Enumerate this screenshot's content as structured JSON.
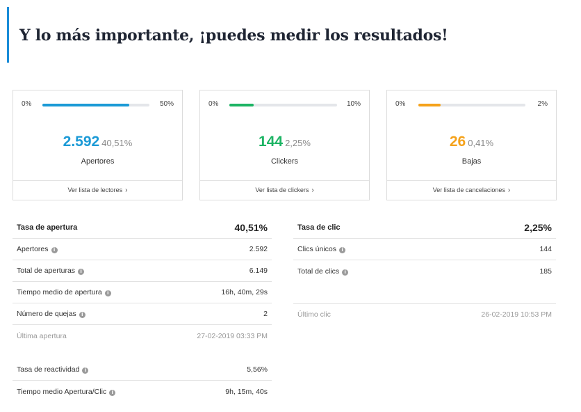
{
  "headline": "Y lo más importante, ¡puedes medir los resultados!",
  "colors": {
    "accent": "#1a8cd8",
    "blue": "#1b9ad6",
    "green": "#1db464",
    "orange": "#f5a21b"
  },
  "cards": [
    {
      "min": "0%",
      "max": "50%",
      "fill_fraction": 0.81,
      "value": "2.592",
      "percent": "40,51%",
      "label": "Apertores",
      "link": "Ver lista de lectores",
      "color": "#1b9ad6"
    },
    {
      "min": "0%",
      "max": "10%",
      "fill_fraction": 0.225,
      "value": "144",
      "percent": "2,25%",
      "label": "Clickers",
      "link": "Ver lista de clickers",
      "color": "#1db464"
    },
    {
      "min": "0%",
      "max": "2%",
      "fill_fraction": 0.205,
      "value": "26",
      "percent": "0,41%",
      "label": "Bajas",
      "link": "Ver lista de cancelaciones",
      "color": "#f5a21b"
    }
  ],
  "left_stats": {
    "header": {
      "label": "Tasa de apertura",
      "value": "40,51%"
    },
    "rows": [
      {
        "label": "Apertores",
        "value": "2.592",
        "info": true
      },
      {
        "label": "Total de aperturas",
        "value": "6.149",
        "info": true
      },
      {
        "label": "Tiempo medio de apertura",
        "value": "16h, 40m, 29s",
        "info": true
      },
      {
        "label": "Número de quejas",
        "value": "2",
        "info": true
      },
      {
        "label": "Última apertura",
        "value": "27-02-2019 03:33 PM",
        "info": false
      }
    ],
    "extra": [
      {
        "label": "Tasa de reactividad",
        "value": "5,56%",
        "info": true
      },
      {
        "label": "Tiempo medio Apertura/Clic",
        "value": "9h, 15m, 40s",
        "info": true
      }
    ]
  },
  "right_stats": {
    "header": {
      "label": "Tasa de clic",
      "value": "2,25%"
    },
    "rows": [
      {
        "label": "Clics únicos",
        "value": "144",
        "info": true
      },
      {
        "label": "Total de clics",
        "value": "185",
        "info": true
      }
    ],
    "last": {
      "label": "Último clic",
      "value": "26-02-2019 10:53 PM"
    }
  },
  "icons": {
    "info": "info-icon",
    "chevron": "chevron-right-icon"
  }
}
